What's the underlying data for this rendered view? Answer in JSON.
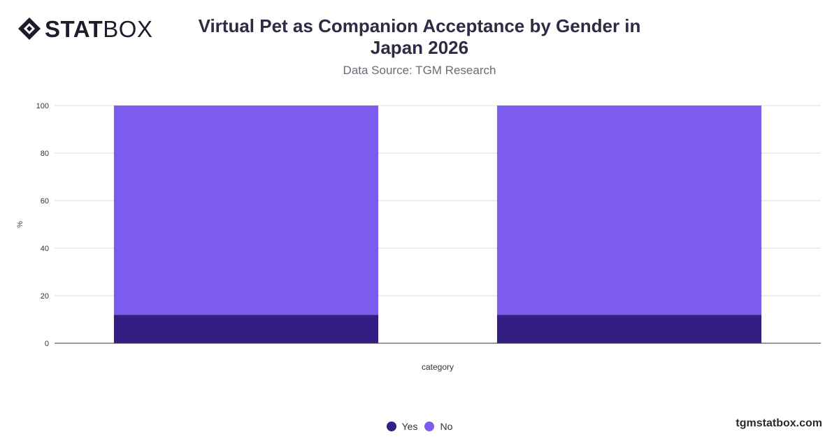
{
  "brand": {
    "logo_bold": "STAT",
    "logo_light": "BOX",
    "footer": "tgmstatbox.com"
  },
  "title": "Virtual Pet as Companion Acceptance by Gender in Japan 2026",
  "subtitle": "Data Source: TGM Research",
  "chart_data": {
    "type": "bar",
    "stacked": true,
    "categories": [
      "",
      ""
    ],
    "series": [
      {
        "name": "Yes",
        "color": "#341e84",
        "values": [
          12,
          12
        ]
      },
      {
        "name": "No",
        "color": "#7b5cef",
        "values": [
          88,
          88
        ]
      }
    ],
    "xlabel": "category",
    "ylabel": "%",
    "ylim": [
      0,
      100
    ],
    "yticks": [
      0,
      20,
      40,
      60,
      80,
      100
    ],
    "grid": true,
    "legend": "bottom-center"
  }
}
